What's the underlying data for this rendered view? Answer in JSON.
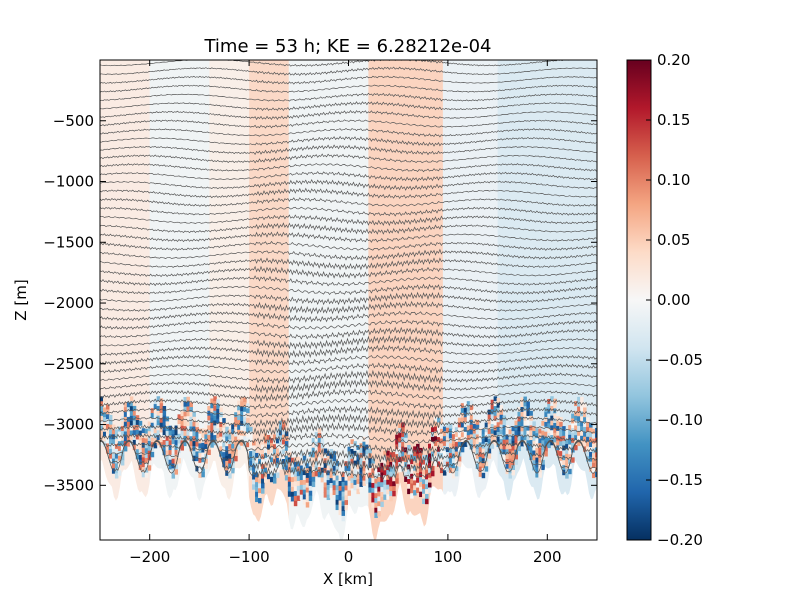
{
  "chart_data": {
    "type": "heatmap",
    "title": "Time = 53 h; KE = 6.28212e-04",
    "xlabel": "X [km]",
    "ylabel": "Z [m]",
    "xlim": [
      -250,
      250
    ],
    "ylim": [
      -3950,
      0
    ],
    "x_ticks": [
      {
        "value": -200,
        "label": "−200"
      },
      {
        "value": -100,
        "label": "−100"
      },
      {
        "value": 0,
        "label": "0"
      },
      {
        "value": 100,
        "label": "100"
      },
      {
        "value": 200,
        "label": "200"
      }
    ],
    "y_ticks": [
      {
        "value": -500,
        "label": "−500"
      },
      {
        "value": -1000,
        "label": "−1000"
      },
      {
        "value": -1500,
        "label": "−1500"
      },
      {
        "value": -2000,
        "label": "−2000"
      },
      {
        "value": -2500,
        "label": "−2500"
      },
      {
        "value": -3000,
        "label": "−3000"
      },
      {
        "value": -3500,
        "label": "−3500"
      }
    ],
    "colorbar": {
      "colormap": "RdBu_r",
      "range": [
        -0.2,
        0.2
      ],
      "ticks": [
        {
          "value": 0.2,
          "label": "0.20"
        },
        {
          "value": 0.15,
          "label": "0.15"
        },
        {
          "value": 0.1,
          "label": "0.10"
        },
        {
          "value": 0.05,
          "label": "0.05"
        },
        {
          "value": 0.0,
          "label": "0.00"
        },
        {
          "value": -0.05,
          "label": "−0.05"
        },
        {
          "value": -0.1,
          "label": "−0.10"
        },
        {
          "value": -0.15,
          "label": "−0.15"
        },
        {
          "value": -0.2,
          "label": "−0.20"
        }
      ],
      "colors": [
        "#053061",
        "#2166ac",
        "#4393c3",
        "#92c5de",
        "#d1e5f0",
        "#f7f7f7",
        "#fddbc7",
        "#f4a582",
        "#d6604d",
        "#b2182b",
        "#67001f"
      ]
    },
    "field_regions": [
      {
        "x": [
          -250,
          -200
        ],
        "value": 0.02
      },
      {
        "x": [
          -200,
          -140
        ],
        "value": -0.01
      },
      {
        "x": [
          -140,
          -100
        ],
        "value": 0.015
      },
      {
        "x": [
          -100,
          -60
        ],
        "value": 0.045
      },
      {
        "x": [
          -60,
          20
        ],
        "value": -0.01
      },
      {
        "x": [
          20,
          95
        ],
        "value": 0.05
      },
      {
        "x": [
          95,
          150
        ],
        "value": -0.015
      },
      {
        "x": [
          150,
          250
        ],
        "value": -0.035
      }
    ],
    "contour_count": 48,
    "contour_color": "#555555",
    "grid": false
  }
}
